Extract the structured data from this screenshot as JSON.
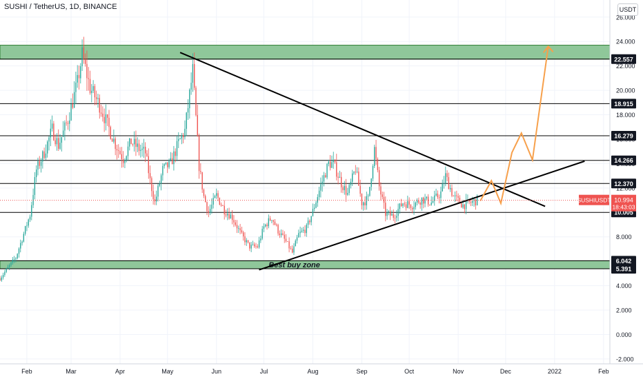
{
  "title": "SUSHI / TetherUS, 1D, BINANCE",
  "currency": "USDT",
  "colors": {
    "up": "#26a69a",
    "down": "#ef5350",
    "zone": "#8fc79a",
    "zone_border": "#2e7d32",
    "line": "#000000",
    "projection": "#f7a04b",
    "price_tag": "#ef5350",
    "level_tag": "#131722",
    "axis_text": "#131722",
    "grid": "#f0f3fa"
  },
  "chart_data": {
    "type": "candlestick",
    "title": "SUSHI / TetherUS, 1D, BINANCE",
    "y_axis": {
      "ticks": [
        "26.000",
        "24.000",
        "22.000",
        "20.000",
        "18.000",
        "16.000",
        "14.000",
        "12.000",
        "10.000",
        "8.000",
        "6.000",
        "4.000",
        "2.000",
        "0.000",
        "-2.000"
      ],
      "range": [
        -2.4,
        27.4
      ],
      "side": "right"
    },
    "x_axis": {
      "ticks": [
        {
          "label": "Feb",
          "day": 12
        },
        {
          "label": "Mar",
          "day": 40
        },
        {
          "label": "Apr",
          "day": 71
        },
        {
          "label": "May",
          "day": 101
        },
        {
          "label": "Jun",
          "day": 132
        },
        {
          "label": "Jul",
          "day": 162
        },
        {
          "label": "Aug",
          "day": 193
        },
        {
          "label": "Sep",
          "day": 224
        },
        {
          "label": "Oct",
          "day": 254
        },
        {
          "label": "Nov",
          "day": 285
        },
        {
          "label": "Dec",
          "day": 315
        },
        {
          "label": "2022",
          "day": 346
        },
        {
          "label": "Feb",
          "day": 377
        }
      ],
      "range": [
        -5,
        381
      ]
    },
    "levels": [
      {
        "label": "22.557",
        "value": 22.557
      },
      {
        "label": "18.915",
        "value": 18.915
      },
      {
        "label": "16.279",
        "value": 16.279
      },
      {
        "label": "14.266",
        "value": 14.266
      },
      {
        "label": "12.370",
        "value": 12.37
      },
      {
        "label": "10.005",
        "value": 10.005
      },
      {
        "label": "6.042",
        "value": 6.042
      },
      {
        "label": "5.391",
        "value": 5.391
      }
    ],
    "zones": [
      {
        "low": 22.557,
        "high": 23.7,
        "label": ""
      },
      {
        "low": 5.391,
        "high": 6.042,
        "label": "Best buy zone"
      }
    ],
    "trendlines": [
      {
        "name": "Descending resistance",
        "points": [
          [
            109,
            23.1
          ],
          [
            340,
            10.5
          ]
        ]
      },
      {
        "name": "Ascending support",
        "points": [
          [
            159,
            5.3
          ],
          [
            365,
            14.2
          ]
        ]
      }
    ],
    "projection": [
      [
        299,
        10.95
      ],
      [
        306,
        12.6
      ],
      [
        312,
        10.75
      ],
      [
        319,
        14.9
      ],
      [
        325,
        16.5
      ],
      [
        332,
        14.3
      ],
      [
        342,
        23.6
      ]
    ],
    "projection_arrowhead": [
      342,
      23.6
    ],
    "current_price": {
      "symbol": "SUSHIUSDT",
      "price": "10.994",
      "countdown": "18:43:03",
      "value": 10.994,
      "x_end": 297
    },
    "candles_close_path": [
      [
        -5,
        4.6
      ],
      [
        5,
        6.3
      ],
      [
        14,
        9.8
      ],
      [
        18,
        13.5
      ],
      [
        23,
        14.9
      ],
      [
        28,
        16.8
      ],
      [
        32,
        15.5
      ],
      [
        38,
        17.6
      ],
      [
        44,
        20.6
      ],
      [
        47,
        22.9
      ],
      [
        52,
        20.2
      ],
      [
        58,
        18.8
      ],
      [
        63,
        17.2
      ],
      [
        68,
        15.6
      ],
      [
        73,
        14.4
      ],
      [
        78,
        15.8
      ],
      [
        83,
        15.2
      ],
      [
        87,
        14.9
      ],
      [
        90,
        12.6
      ],
      [
        93,
        10.8
      ],
      [
        98,
        13.5
      ],
      [
        103,
        14.0
      ],
      [
        108,
        15.7
      ],
      [
        112,
        16.7
      ],
      [
        117,
        21.6
      ],
      [
        121,
        13.8
      ],
      [
        124,
        11.3
      ],
      [
        127,
        10.0
      ],
      [
        132,
        11.4
      ],
      [
        137,
        10.2
      ],
      [
        142,
        9.6
      ],
      [
        148,
        8.1
      ],
      [
        153,
        7.2
      ],
      [
        158,
        7.2
      ],
      [
        162,
        8.8
      ],
      [
        167,
        9.6
      ],
      [
        171,
        8.5
      ],
      [
        176,
        7.6
      ],
      [
        180,
        6.7
      ],
      [
        184,
        8.2
      ],
      [
        189,
        8.7
      ],
      [
        193,
        10.1
      ],
      [
        198,
        12.2
      ],
      [
        203,
        14.0
      ],
      [
        206,
        14.0
      ],
      [
        211,
        12.4
      ],
      [
        215,
        11.5
      ],
      [
        220,
        13.6
      ],
      [
        224,
        10.8
      ],
      [
        228,
        11.1
      ],
      [
        232,
        15.2
      ],
      [
        235,
        12.1
      ],
      [
        239,
        9.9
      ],
      [
        244,
        9.7
      ],
      [
        250,
        10.8
      ],
      [
        256,
        10.6
      ],
      [
        262,
        11.1
      ],
      [
        268,
        10.8
      ],
      [
        274,
        11.6
      ],
      [
        277,
        13.0
      ],
      [
        282,
        11.3
      ],
      [
        288,
        10.6
      ],
      [
        297,
        10.994
      ]
    ]
  }
}
